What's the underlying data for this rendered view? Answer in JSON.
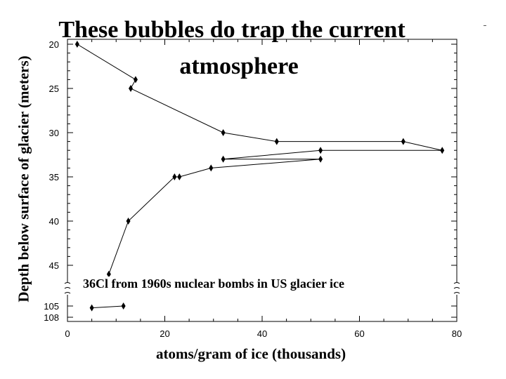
{
  "chart_data": {
    "type": "line",
    "title_line1": "These bubbles do trap the current",
    "title_line2": "atmosphere",
    "xlabel": "atoms/gram of ice (thousands)",
    "ylabel": "Depth below surface of glacier (meters)",
    "annotation": "36Cl from 1960s nuclear bombs in US glacier ice",
    "xlim": [
      0,
      80
    ],
    "x_ticks": [
      "0",
      "20",
      "40",
      "60",
      "80"
    ],
    "x_tick_values": [
      0,
      20,
      40,
      60,
      80
    ],
    "y_ticks": [
      "20",
      "25",
      "30",
      "35",
      "40",
      "45",
      "105",
      "108"
    ],
    "y_tick_values": [
      20,
      25,
      30,
      35,
      40,
      45,
      105,
      108
    ],
    "ylim": [
      20,
      108
    ],
    "axis_break": "between 45 and 105 m",
    "grid": false,
    "series": [
      {
        "values": [
          [
            2,
            20
          ],
          [
            14,
            24
          ],
          [
            13,
            25
          ],
          [
            32,
            30
          ],
          [
            43,
            31
          ],
          [
            69,
            31
          ],
          [
            77,
            32
          ],
          [
            52,
            32
          ],
          [
            32,
            33
          ],
          [
            52,
            33
          ],
          [
            29.5,
            34
          ],
          [
            23,
            35
          ],
          [
            22,
            35
          ],
          [
            12.5,
            40
          ],
          [
            8.5,
            46
          ],
          [
            11.5,
            105
          ],
          [
            5,
            105.5
          ]
        ]
      }
    ]
  }
}
